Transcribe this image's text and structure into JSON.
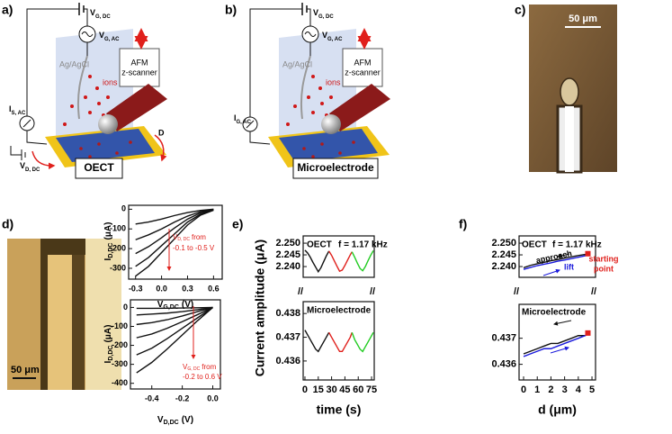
{
  "figure": {
    "a": {
      "label": "a)",
      "vg_dc": {
        "main": "V",
        "sub": "G, DC"
      },
      "vg_ac": {
        "main": "V",
        "sub": "G, AC"
      },
      "electrode": "Ag/AgCl",
      "ions": "ions",
      "afm": [
        "AFM",
        "z-scanner"
      ],
      "current": {
        "main": "I",
        "sub": "S, AC"
      },
      "vd_dc": {
        "main": "V",
        "sub": "D, DC"
      },
      "drain": "D",
      "device": "OECT"
    },
    "b": {
      "label": "b)",
      "vg_dc": {
        "main": "V",
        "sub": "G, DC"
      },
      "vg_ac": {
        "main": "V",
        "sub": "G, AC"
      },
      "electrode": "Ag/AgCl",
      "ions": "ions",
      "afm": [
        "AFM",
        "z-scanner"
      ],
      "current": {
        "main": "I",
        "sub": "G, AC"
      },
      "device": "Microelectrode"
    },
    "c": {
      "label": "c)",
      "scale": "50 μm"
    },
    "d": {
      "label": "d)",
      "scale": "50 μm",
      "top_note": {
        "main": "V",
        "sub": "D, DC",
        "after": "from",
        "line2": "-0.1 to -0.5 V"
      },
      "bottom_note": {
        "main": "V",
        "sub": "G, DC",
        "after": "from",
        "line2": "-0.2 to 0.6 V"
      }
    },
    "e": {
      "label": "e)",
      "top_tag": "OECT",
      "freq": "f = 1.17 kHz",
      "bottom_tag": "Microelectrode"
    },
    "f": {
      "label": "f)",
      "top_tag": "OECT",
      "freq": "f = 1.17 kHz",
      "approach": "approach",
      "lift": "lift",
      "start": [
        "starting",
        "point"
      ],
      "bottom_tag": "Microelectrode"
    }
  },
  "chart_data": [
    {
      "type": "line",
      "xlim": [
        -0.38,
        0.7
      ],
      "ylim": [
        -355,
        20
      ],
      "xticks": [
        -0.3,
        {
          "value": 0,
          "label": "0.0"
        },
        0.3,
        0.6
      ],
      "yticks": [
        0,
        -100,
        -200,
        -300
      ],
      "xlabel": {
        "main": "V",
        "sub": "G,DC",
        "after": "(V)"
      },
      "ylabel": {
        "main": "I",
        "sub": "D,DC",
        "after": "(μA)"
      },
      "series": [
        {
          "color": "#111111",
          "x": [
            -0.3,
            -0.15,
            0,
            0.15,
            0.3,
            0.45,
            0.6
          ],
          "values": [
            -340,
            -290,
            -220,
            -150,
            -80,
            -30,
            -5
          ]
        },
        {
          "color": "#111111",
          "x": [
            -0.3,
            -0.15,
            0,
            0.15,
            0.3,
            0.45,
            0.6
          ],
          "values": [
            -290,
            -245,
            -185,
            -125,
            -65,
            -25,
            -3
          ]
        },
        {
          "color": "#111111",
          "x": [
            -0.3,
            -0.15,
            0,
            0.15,
            0.3,
            0.45,
            0.6
          ],
          "values": [
            -225,
            -190,
            -145,
            -95,
            -50,
            -18,
            -2
          ]
        },
        {
          "color": "#111111",
          "x": [
            -0.3,
            -0.15,
            0,
            0.15,
            0.3,
            0.45,
            0.6
          ],
          "values": [
            -155,
            -130,
            -100,
            -65,
            -35,
            -12,
            -1
          ]
        },
        {
          "color": "#111111",
          "x": [
            -0.3,
            -0.15,
            0,
            0.15,
            0.3,
            0.45,
            0.6
          ],
          "values": [
            -75,
            -65,
            -50,
            -32,
            -17,
            -6,
            0
          ]
        }
      ]
    },
    {
      "type": "line",
      "xlim": [
        -0.54,
        0.05
      ],
      "ylim": [
        -430,
        40
      ],
      "xticks": [
        -0.4,
        -0.2,
        {
          "value": 0,
          "label": "0.0"
        }
      ],
      "yticks": [
        0,
        -100,
        -200,
        -300,
        -400
      ],
      "xlabel": {
        "main": "V",
        "sub": "D,DC",
        "after": "(V)"
      },
      "ylabel": {
        "main": "I",
        "sub": "D,DC",
        "after": "(μA)"
      },
      "series": [
        {
          "color": "#111111",
          "x": [
            -0.5,
            -0.4,
            -0.3,
            -0.2,
            -0.1,
            0
          ],
          "values": [
            -345,
            -290,
            -220,
            -145,
            -70,
            0
          ]
        },
        {
          "color": "#111111",
          "x": [
            -0.5,
            -0.4,
            -0.3,
            -0.2,
            -0.1,
            0
          ],
          "values": [
            -250,
            -215,
            -165,
            -110,
            -55,
            0
          ]
        },
        {
          "color": "#111111",
          "x": [
            -0.5,
            -0.4,
            -0.3,
            -0.2,
            -0.1,
            0
          ],
          "values": [
            -160,
            -140,
            -110,
            -75,
            -38,
            0
          ]
        },
        {
          "color": "#111111",
          "x": [
            -0.5,
            -0.4,
            -0.3,
            -0.2,
            -0.1,
            0
          ],
          "values": [
            -90,
            -80,
            -65,
            -45,
            -22,
            0
          ]
        },
        {
          "color": "#111111",
          "x": [
            -0.5,
            -0.4,
            -0.3,
            -0.2,
            -0.1,
            0
          ],
          "values": [
            -40,
            -35,
            -30,
            -22,
            -12,
            0
          ]
        },
        {
          "color": "#111111",
          "x": [
            -0.5,
            -0.4,
            -0.3,
            -0.2,
            -0.1,
            0
          ],
          "values": [
            -5,
            -5,
            -4,
            -3,
            -2,
            0
          ]
        }
      ]
    },
    {
      "type": "line",
      "xlim": [
        -2,
        78
      ],
      "ylim": [
        2.2354,
        2.2531
      ],
      "yticks": [
        {
          "value": 2.24,
          "label": "2.240"
        },
        2.245,
        {
          "value": 2.25,
          "label": "2.250"
        }
      ],
      "series": [
        {
          "color": "#111111",
          "x": [
            0,
            3,
            6,
            9,
            12,
            15,
            18,
            21,
            24,
            27
          ],
          "values": [
            2.247,
            2.2458,
            2.244,
            2.2418,
            2.2398,
            2.2378,
            2.2395,
            2.242,
            2.2445,
            2.2466
          ]
        },
        {
          "color": "#e0201c",
          "x": [
            27,
            30,
            33,
            36,
            39,
            42,
            45,
            48,
            51,
            53
          ],
          "values": [
            2.2466,
            2.2448,
            2.2425,
            2.2402,
            2.238,
            2.2385,
            2.2405,
            2.2428,
            2.245,
            2.2463
          ]
        },
        {
          "color": "#22cc22",
          "x": [
            53,
            56,
            59,
            62,
            65,
            68,
            71,
            74,
            77
          ],
          "values": [
            2.2463,
            2.244,
            2.2415,
            2.2392,
            2.2382,
            2.24,
            2.2425,
            2.2448,
            2.2468
          ]
        }
      ]
    },
    {
      "type": "line",
      "xlim": [
        -2,
        78
      ],
      "ylim": [
        0.4352,
        0.4385
      ],
      "xticks": [
        0,
        15,
        30,
        45,
        60,
        75
      ],
      "yticks": [
        0.436,
        0.437,
        0.438
      ],
      "xlabel": "time (s)",
      "ylabel": "Current amplitude (μA)",
      "series": [
        {
          "color": "#111111",
          "x": [
            0,
            3,
            6,
            9,
            12,
            15,
            18,
            21,
            24,
            27
          ],
          "values": [
            0.4373,
            0.4371,
            0.4369,
            0.4367,
            0.4365,
            0.4364,
            0.4366,
            0.4368,
            0.437,
            0.4372
          ]
        },
        {
          "color": "#e0201c",
          "x": [
            27,
            30,
            33,
            36,
            39,
            42,
            45,
            48,
            51,
            53
          ],
          "values": [
            0.4372,
            0.437,
            0.4368,
            0.4366,
            0.4364,
            0.4364,
            0.4366,
            0.4368,
            0.437,
            0.4372
          ]
        },
        {
          "color": "#22cc22",
          "x": [
            53,
            56,
            59,
            62,
            65,
            68,
            71,
            74,
            77
          ],
          "values": [
            0.4372,
            0.4369,
            0.4367,
            0.4365,
            0.4364,
            0.4366,
            0.4368,
            0.437,
            0.4372
          ]
        }
      ]
    },
    {
      "type": "line",
      "xlim": [
        -0.33,
        5.26
      ],
      "ylim": [
        2.2354,
        2.2531
      ],
      "yticks": [
        {
          "value": 2.24,
          "label": "2.240"
        },
        2.245,
        {
          "value": 2.25,
          "label": "2.250"
        }
      ],
      "series": [
        {
          "color": "#111111",
          "x": [
            0,
            0.5,
            1,
            1.5,
            2,
            2.5,
            3,
            3.5,
            4,
            4.5,
            4.8
          ],
          "values": [
            2.2395,
            2.2405,
            2.2412,
            2.2418,
            2.2425,
            2.243,
            2.2436,
            2.2442,
            2.2447,
            2.2452,
            2.2456
          ]
        },
        {
          "color": "#1a1adb",
          "x": [
            0,
            0.5,
            1,
            1.5,
            2,
            2.5,
            3,
            3.5,
            4,
            4.5,
            4.8
          ],
          "values": [
            2.2388,
            2.2396,
            2.2404,
            2.241,
            2.2416,
            2.2423,
            2.2428,
            2.2434,
            2.244,
            2.2446,
            2.2452
          ]
        }
      ],
      "start_point": {
        "x": 4.7,
        "value": 2.2455,
        "color": "#e0201c"
      }
    },
    {
      "type": "line",
      "xlim": [
        -0.33,
        5.26
      ],
      "ylim": [
        0.4354,
        0.4383
      ],
      "xticks": [
        0,
        1,
        2,
        3,
        4,
        5
      ],
      "yticks": [
        0.436,
        0.437
      ],
      "xlabel": "d (μm)",
      "series": [
        {
          "color": "#111111",
          "x": [
            0,
            0.5,
            1,
            1.5,
            2,
            2.5,
            3,
            3.5,
            4,
            4.5,
            4.8
          ],
          "values": [
            0.4364,
            0.4365,
            0.4366,
            0.4367,
            0.4368,
            0.4368,
            0.4369,
            0.437,
            0.4371,
            0.4371,
            0.4372
          ]
        },
        {
          "color": "#1a1adb",
          "x": [
            0,
            0.5,
            1,
            1.5,
            2,
            2.5,
            3,
            3.5,
            4,
            4.5,
            4.8
          ],
          "values": [
            0.4363,
            0.4364,
            0.4365,
            0.4366,
            0.4366,
            0.4367,
            0.4368,
            0.4369,
            0.437,
            0.4371,
            0.4372
          ]
        }
      ],
      "start_point": {
        "x": 4.7,
        "value": 0.4372,
        "color": "#e0201c"
      }
    }
  ]
}
